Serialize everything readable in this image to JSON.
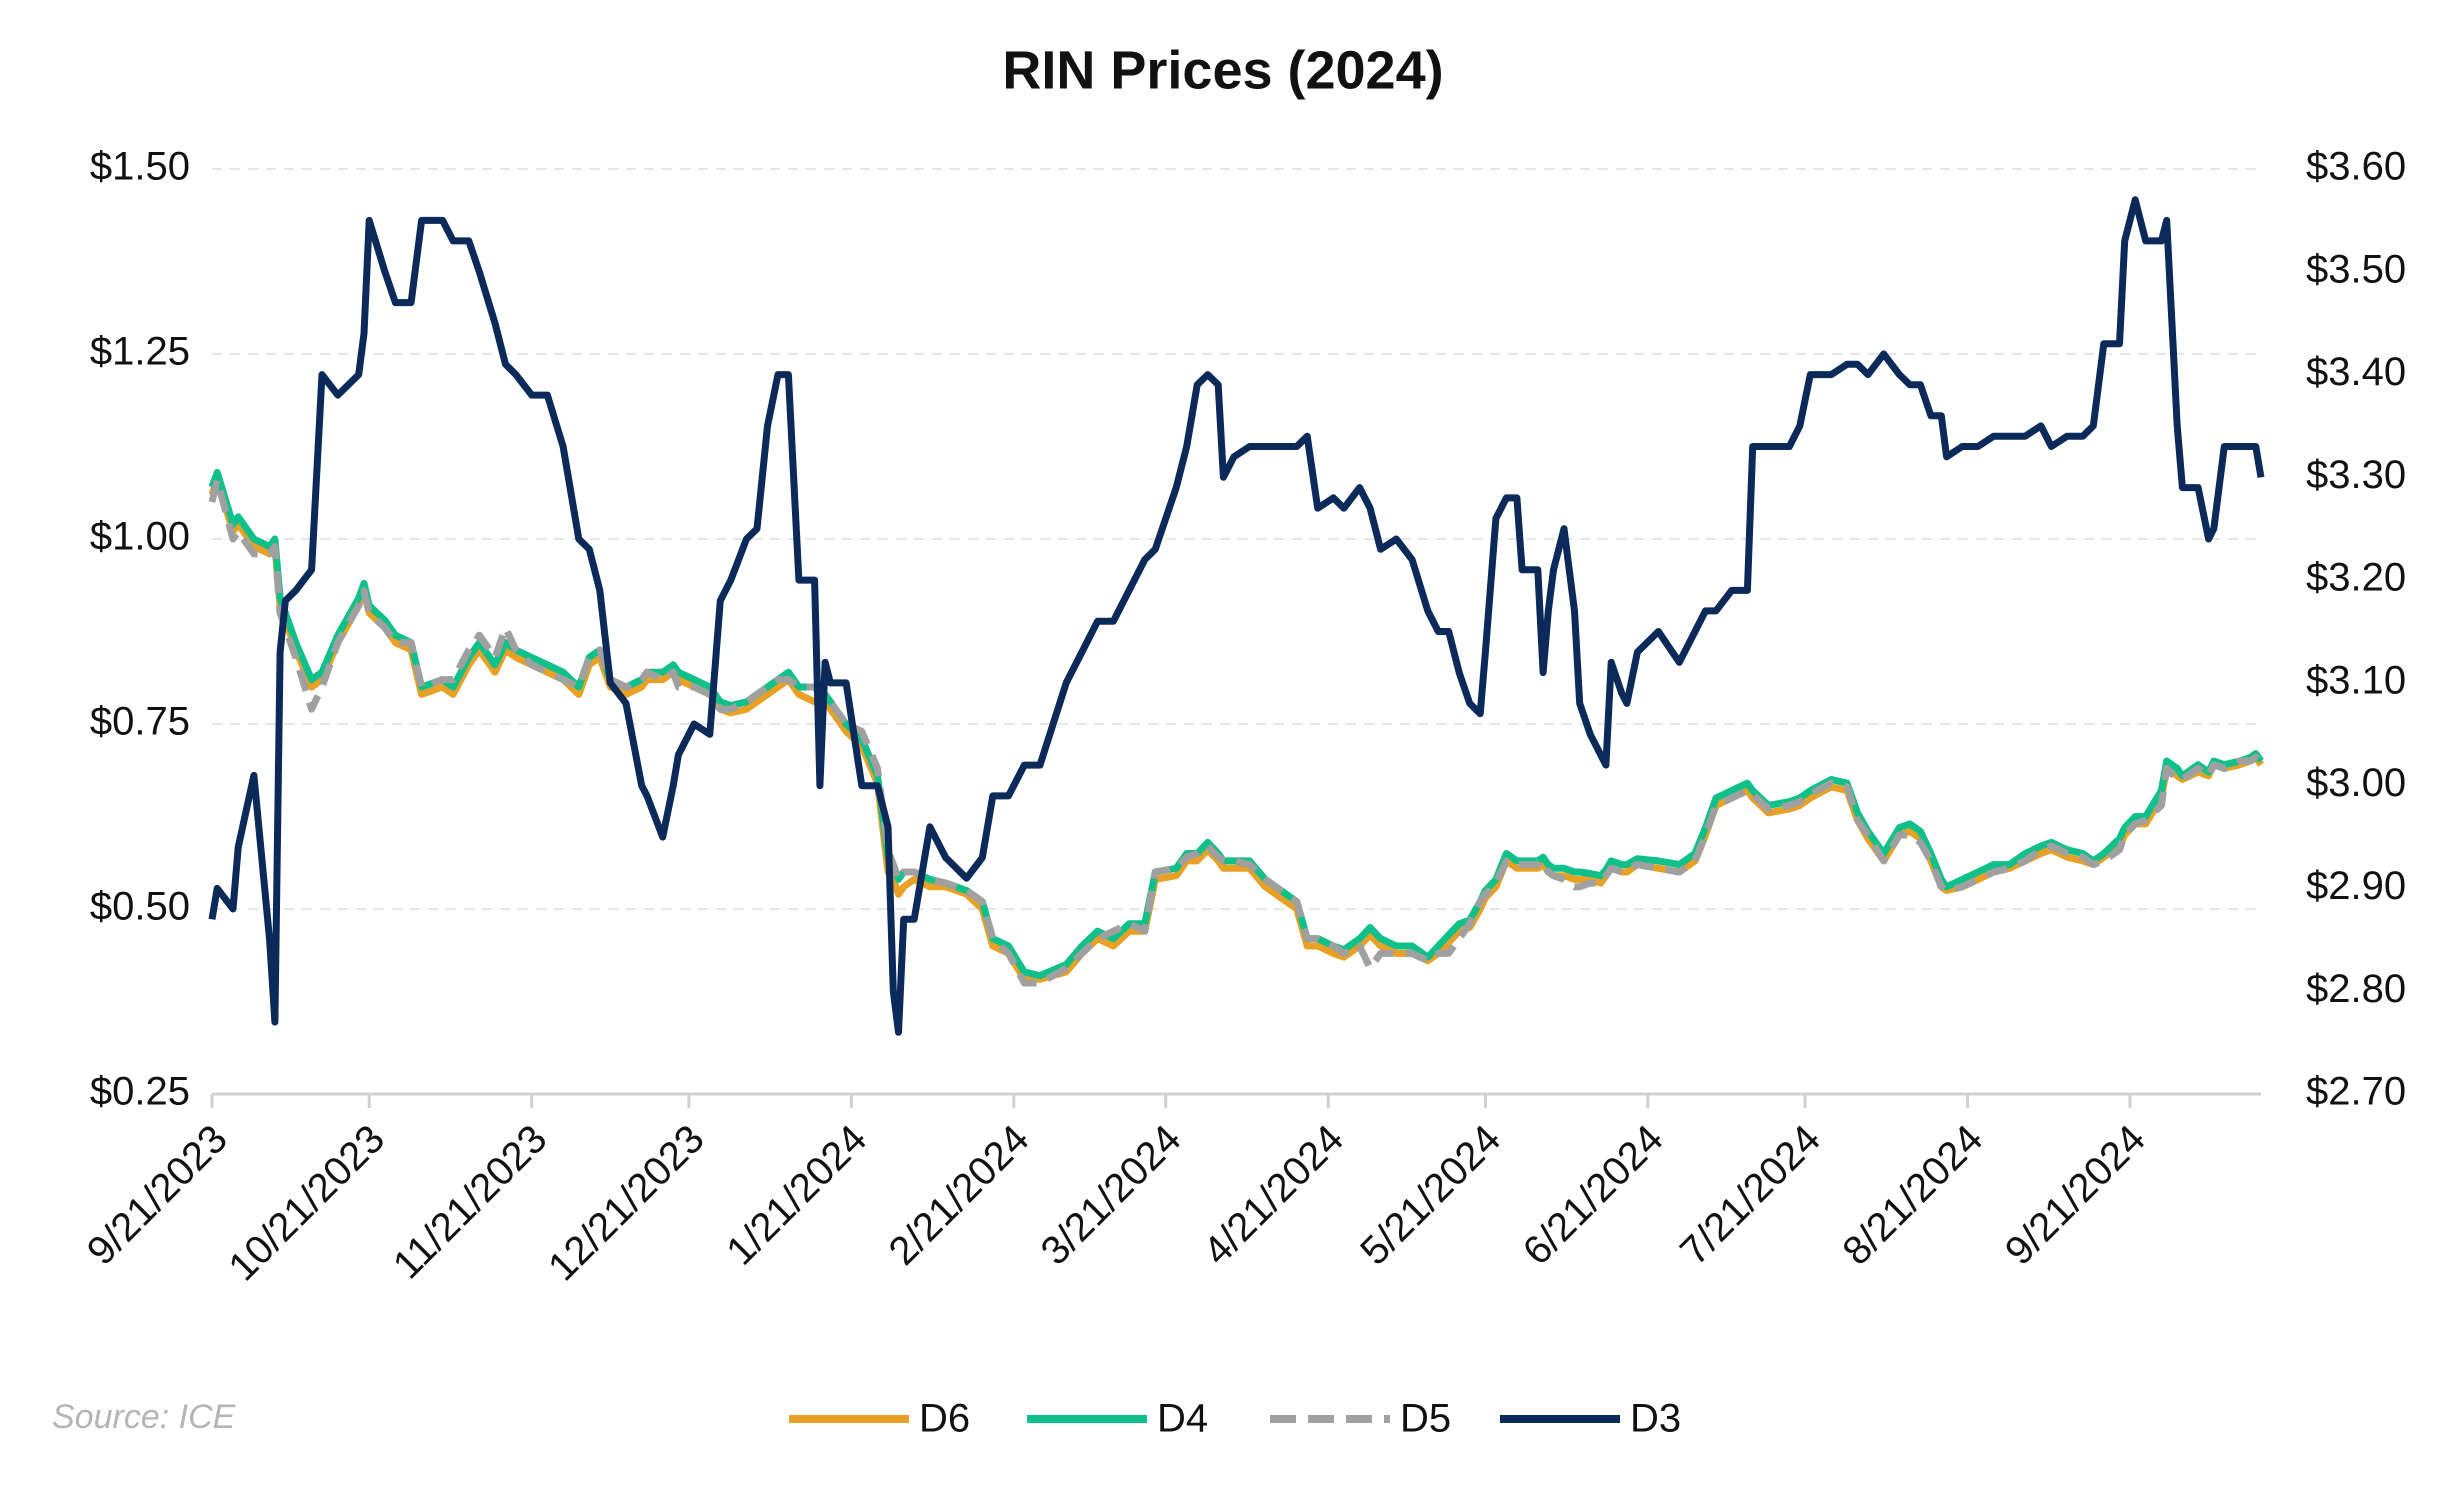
{
  "chart_data": {
    "type": "line",
    "title": "RIN Prices (2024)",
    "source": "Source: ICE",
    "legend": "bottom",
    "grid": true,
    "x": [
      "2023-09-21",
      "2023-09-22",
      "2023-09-25",
      "2023-09-26",
      "2023-09-29",
      "2023-10-02",
      "2023-10-03",
      "2023-10-04",
      "2023-10-05",
      "2023-10-07",
      "2023-10-10",
      "2023-10-12",
      "2023-10-15",
      "2023-10-19",
      "2023-10-20",
      "2023-10-21",
      "2023-10-24",
      "2023-10-26",
      "2023-10-29",
      "2023-10-31",
      "2023-11-04",
      "2023-11-06",
      "2023-11-09",
      "2023-11-11",
      "2023-11-14",
      "2023-11-16",
      "2023-11-18",
      "2023-11-21",
      "2023-11-24",
      "2023-11-27",
      "2023-11-30",
      "2023-12-02",
      "2023-12-04",
      "2023-12-06",
      "2023-12-09",
      "2023-12-12",
      "2023-12-13",
      "2023-12-16",
      "2023-12-18",
      "2023-12-19",
      "2023-12-22",
      "2023-12-25",
      "2023-12-27",
      "2023-12-29",
      "2024-01-01",
      "2024-01-03",
      "2024-01-05",
      "2024-01-07",
      "2024-01-09",
      "2024-01-11",
      "2024-01-14",
      "2024-01-15",
      "2024-01-16",
      "2024-01-17",
      "2024-01-20",
      "2024-01-23",
      "2024-01-26",
      "2024-01-28",
      "2024-01-29",
      "2024-01-30",
      "2024-01-31",
      "2024-02-02",
      "2024-02-05",
      "2024-02-08",
      "2024-02-12",
      "2024-02-15",
      "2024-02-17",
      "2024-02-20",
      "2024-02-23",
      "2024-02-26",
      "2024-03-02",
      "2024-03-05",
      "2024-03-08",
      "2024-03-11",
      "2024-03-14",
      "2024-03-17",
      "2024-03-19",
      "2024-03-23",
      "2024-03-25",
      "2024-03-27",
      "2024-03-29",
      "2024-03-31",
      "2024-04-01",
      "2024-04-03",
      "2024-04-06",
      "2024-04-09",
      "2024-04-12",
      "2024-04-15",
      "2024-04-17",
      "2024-04-19",
      "2024-04-22",
      "2024-04-24",
      "2024-04-27",
      "2024-04-29",
      "2024-05-01",
      "2024-05-04",
      "2024-05-07",
      "2024-05-10",
      "2024-05-12",
      "2024-05-14",
      "2024-05-16",
      "2024-05-18",
      "2024-05-20",
      "2024-05-21",
      "2024-05-23",
      "2024-05-25",
      "2024-05-27",
      "2024-05-28",
      "2024-05-31",
      "2024-06-01",
      "2024-06-02",
      "2024-06-03",
      "2024-06-05",
      "2024-06-07",
      "2024-06-08",
      "2024-06-10",
      "2024-06-12",
      "2024-06-13",
      "2024-06-14",
      "2024-06-16",
      "2024-06-17",
      "2024-06-19",
      "2024-06-23",
      "2024-06-27",
      "2024-06-30",
      "2024-07-02",
      "2024-07-04",
      "2024-07-07",
      "2024-07-10",
      "2024-07-11",
      "2024-07-14",
      "2024-07-18",
      "2024-07-20",
      "2024-07-22",
      "2024-07-26",
      "2024-07-29",
      "2024-07-31",
      "2024-08-02",
      "2024-08-05",
      "2024-08-08",
      "2024-08-10",
      "2024-08-12",
      "2024-08-14",
      "2024-08-16",
      "2024-08-17",
      "2024-08-20",
      "2024-08-23",
      "2024-08-26",
      "2024-08-29",
      "2024-09-01",
      "2024-09-04",
      "2024-09-06",
      "2024-09-09",
      "2024-09-12",
      "2024-09-14",
      "2024-09-16",
      "2024-09-19",
      "2024-09-20",
      "2024-09-22",
      "2024-09-24",
      "2024-09-27",
      "2024-09-28",
      "2024-09-30",
      "2024-10-01",
      "2024-10-04",
      "2024-10-06",
      "2024-10-07",
      "2024-10-09",
      "2024-10-12",
      "2024-10-14",
      "2024-10-15",
      "2024-10-16"
    ],
    "series": [
      {
        "name": "D6",
        "color": "#e8a025",
        "dash": false,
        "values": [
          1.06,
          1.08,
          1.01,
          1.02,
          0.99,
          0.98,
          0.99,
          0.91,
          0.89,
          0.85,
          0.8,
          0.81,
          0.86,
          0.91,
          0.93,
          0.9,
          0.88,
          0.86,
          0.85,
          0.79,
          0.8,
          0.79,
          0.83,
          0.85,
          0.82,
          0.85,
          0.84,
          0.83,
          0.82,
          0.81,
          0.79,
          0.83,
          0.84,
          0.8,
          0.79,
          0.8,
          0.81,
          0.81,
          0.82,
          0.81,
          0.8,
          0.79,
          0.77,
          0.765,
          0.77,
          0.78,
          0.79,
          0.8,
          0.81,
          0.79,
          0.78,
          0.78,
          0.78,
          0.77,
          0.74,
          0.72,
          0.67,
          0.55,
          0.54,
          0.52,
          0.53,
          0.54,
          0.53,
          0.53,
          0.52,
          0.5,
          0.45,
          0.44,
          0.405,
          0.405,
          0.415,
          0.44,
          0.46,
          0.45,
          0.47,
          0.47,
          0.54,
          0.545,
          0.565,
          0.565,
          0.58,
          0.565,
          0.555,
          0.555,
          0.555,
          0.53,
          0.515,
          0.5,
          0.45,
          0.45,
          0.44,
          0.435,
          0.45,
          0.465,
          0.45,
          0.44,
          0.44,
          0.43,
          0.44,
          0.455,
          0.47,
          0.475,
          0.5,
          0.515,
          0.53,
          0.565,
          0.555,
          0.555,
          0.555,
          0.56,
          0.55,
          0.545,
          0.545,
          0.54,
          0.54,
          0.54,
          0.535,
          0.545,
          0.555,
          0.55,
          0.55,
          0.56,
          0.555,
          0.55,
          0.565,
          0.6,
          0.64,
          0.65,
          0.66,
          0.65,
          0.63,
          0.635,
          0.64,
          0.65,
          0.665,
          0.66,
          0.62,
          0.595,
          0.565,
          0.6,
          0.605,
          0.595,
          0.565,
          0.53,
          0.525,
          0.53,
          0.54,
          0.55,
          0.555,
          0.565,
          0.575,
          0.58,
          0.57,
          0.565,
          0.56,
          0.57,
          0.585,
          0.6,
          0.615,
          0.615,
          0.65,
          0.69,
          0.68,
          0.675,
          0.685,
          0.68,
          0.695,
          0.69,
          0.695,
          0.7,
          0.705,
          0.695
        ]
      },
      {
        "name": "D4",
        "color": "#10c08a",
        "dash": false,
        "values": [
          1.07,
          1.09,
          1.02,
          1.03,
          1.0,
          0.99,
          1.0,
          0.92,
          0.9,
          0.86,
          0.81,
          0.82,
          0.87,
          0.92,
          0.94,
          0.91,
          0.89,
          0.87,
          0.86,
          0.8,
          0.81,
          0.8,
          0.84,
          0.86,
          0.83,
          0.86,
          0.85,
          0.84,
          0.83,
          0.82,
          0.8,
          0.84,
          0.85,
          0.81,
          0.8,
          0.81,
          0.82,
          0.82,
          0.83,
          0.82,
          0.81,
          0.8,
          0.78,
          0.775,
          0.78,
          0.79,
          0.8,
          0.81,
          0.82,
          0.8,
          0.8,
          0.79,
          0.79,
          0.78,
          0.75,
          0.73,
          0.68,
          0.57,
          0.56,
          0.54,
          0.55,
          0.55,
          0.54,
          0.535,
          0.525,
          0.51,
          0.46,
          0.45,
          0.415,
          0.41,
          0.425,
          0.45,
          0.47,
          0.46,
          0.48,
          0.48,
          0.55,
          0.555,
          0.575,
          0.575,
          0.59,
          0.575,
          0.565,
          0.565,
          0.565,
          0.54,
          0.525,
          0.51,
          0.46,
          0.46,
          0.45,
          0.445,
          0.46,
          0.475,
          0.46,
          0.45,
          0.45,
          0.435,
          0.45,
          0.465,
          0.48,
          0.485,
          0.51,
          0.525,
          0.54,
          0.575,
          0.565,
          0.565,
          0.565,
          0.57,
          0.56,
          0.555,
          0.555,
          0.55,
          0.55,
          0.548,
          0.545,
          0.553,
          0.565,
          0.56,
          0.56,
          0.568,
          0.565,
          0.56,
          0.575,
          0.61,
          0.65,
          0.66,
          0.67,
          0.66,
          0.64,
          0.645,
          0.65,
          0.66,
          0.675,
          0.67,
          0.63,
          0.605,
          0.575,
          0.61,
          0.615,
          0.605,
          0.575,
          0.54,
          0.53,
          0.54,
          0.55,
          0.56,
          0.56,
          0.575,
          0.585,
          0.59,
          0.58,
          0.575,
          0.565,
          0.575,
          0.595,
          0.61,
          0.625,
          0.625,
          0.66,
          0.7,
          0.69,
          0.68,
          0.695,
          0.685,
          0.7,
          0.695,
          0.7,
          0.705,
          0.71,
          0.7
        ]
      },
      {
        "name": "D5",
        "color": "#a0a0a0",
        "dash": true,
        "values": [
          1.05,
          1.08,
          1.0,
          1.01,
          0.98,
          0.98,
          0.99,
          0.9,
          0.88,
          0.84,
          0.77,
          0.8,
          0.86,
          0.91,
          0.93,
          0.9,
          0.88,
          0.86,
          0.86,
          0.8,
          0.81,
          0.81,
          0.85,
          0.87,
          0.84,
          0.88,
          0.85,
          0.83,
          0.82,
          0.81,
          0.8,
          0.84,
          0.85,
          0.81,
          0.8,
          0.81,
          0.82,
          0.81,
          0.82,
          0.8,
          0.8,
          0.79,
          0.77,
          0.77,
          0.78,
          0.79,
          0.8,
          0.81,
          0.81,
          0.8,
          0.8,
          0.79,
          0.79,
          0.78,
          0.75,
          0.74,
          0.69,
          0.58,
          0.56,
          0.54,
          0.55,
          0.55,
          0.54,
          0.535,
          0.525,
          0.51,
          0.46,
          0.44,
          0.4,
          0.4,
          0.42,
          0.44,
          0.46,
          0.47,
          0.48,
          0.47,
          0.55,
          0.555,
          0.57,
          0.575,
          0.585,
          0.57,
          0.565,
          0.565,
          0.56,
          0.54,
          0.525,
          0.51,
          0.46,
          0.46,
          0.45,
          0.44,
          0.45,
          0.42,
          0.44,
          0.44,
          0.44,
          0.43,
          0.44,
          0.44,
          0.46,
          0.48,
          0.51,
          0.52,
          0.535,
          0.565,
          0.56,
          0.56,
          0.56,
          0.565,
          0.55,
          0.545,
          0.54,
          0.53,
          0.53,
          0.535,
          0.535,
          0.545,
          0.555,
          0.55,
          0.555,
          0.56,
          0.555,
          0.55,
          0.565,
          0.6,
          0.64,
          0.65,
          0.66,
          0.655,
          0.635,
          0.64,
          0.645,
          0.655,
          0.67,
          0.665,
          0.62,
          0.6,
          0.565,
          0.6,
          0.6,
          0.59,
          0.565,
          0.53,
          0.525,
          0.53,
          0.54,
          0.55,
          0.555,
          0.565,
          0.58,
          0.585,
          0.575,
          0.57,
          0.56,
          0.565,
          0.58,
          0.6,
          0.615,
          0.62,
          0.64,
          0.69,
          0.675,
          0.675,
          0.69,
          0.68,
          0.695,
          0.69,
          0.7,
          0.7,
          0.705,
          0.695
        ]
      },
      {
        "name": "D3",
        "color": "#0b2a5a",
        "dash": false,
        "axis": "y2",
        "values": [
          2.87,
          2.9,
          2.88,
          2.94,
          3.01,
          2.85,
          2.77,
          3.13,
          3.18,
          3.19,
          3.21,
          3.4,
          3.38,
          3.4,
          3.44,
          3.55,
          3.5,
          3.47,
          3.47,
          3.55,
          3.55,
          3.53,
          3.53,
          3.5,
          3.45,
          3.41,
          3.4,
          3.38,
          3.38,
          3.33,
          3.24,
          3.23,
          3.19,
          3.1,
          3.08,
          3.0,
          2.99,
          2.95,
          3.0,
          3.03,
          3.06,
          3.05,
          3.18,
          3.2,
          3.24,
          3.25,
          3.35,
          3.4,
          3.4,
          3.2,
          3.2,
          3.0,
          3.12,
          3.1,
          3.1,
          3.0,
          3.0,
          2.96,
          2.8,
          2.76,
          2.87,
          2.87,
          2.96,
          2.93,
          2.91,
          2.93,
          2.99,
          2.99,
          3.02,
          3.02,
          3.1,
          3.13,
          3.16,
          3.16,
          3.19,
          3.22,
          3.23,
          3.29,
          3.33,
          3.39,
          3.4,
          3.39,
          3.3,
          3.32,
          3.33,
          3.33,
          3.33,
          3.33,
          3.34,
          3.27,
          3.28,
          3.27,
          3.29,
          3.27,
          3.23,
          3.24,
          3.22,
          3.17,
          3.15,
          3.15,
          3.11,
          3.08,
          3.07,
          3.13,
          3.26,
          3.28,
          3.28,
          3.21,
          3.21,
          3.11,
          3.17,
          3.21,
          3.25,
          3.17,
          3.08,
          3.05,
          3.03,
          3.02,
          3.12,
          3.09,
          3.08,
          3.13,
          3.15,
          3.12,
          3.15,
          3.17,
          3.17,
          3.19,
          3.19,
          3.33,
          3.33,
          3.33,
          3.35,
          3.4,
          3.4,
          3.41,
          3.41,
          3.4,
          3.42,
          3.4,
          3.39,
          3.39,
          3.36,
          3.36,
          3.32,
          3.33,
          3.33,
          3.34,
          3.34,
          3.34,
          3.35,
          3.33,
          3.34,
          3.34,
          3.35,
          3.43,
          3.43,
          3.53,
          3.57,
          3.53,
          3.53,
          3.55,
          3.35,
          3.29,
          3.29,
          3.24,
          3.25,
          3.33,
          3.33,
          3.33,
          3.33,
          3.3
        ]
      }
    ],
    "xlim": [
      "2023-09-21",
      "2024-10-16"
    ],
    "xticks": [
      {
        "value": "2023-09-21",
        "label": "9/21/2023"
      },
      {
        "value": "2023-10-21",
        "label": "10/21/2023"
      },
      {
        "value": "2023-11-21",
        "label": "11/21/2023"
      },
      {
        "value": "2023-12-21",
        "label": "12/21/2023"
      },
      {
        "value": "2024-01-21",
        "label": "1/21/2024"
      },
      {
        "value": "2024-02-21",
        "label": "2/21/2024"
      },
      {
        "value": "2024-03-21",
        "label": "3/21/2024"
      },
      {
        "value": "2024-04-21",
        "label": "4/21/2024"
      },
      {
        "value": "2024-05-21",
        "label": "5/21/2024"
      },
      {
        "value": "2024-06-21",
        "label": "6/21/2024"
      },
      {
        "value": "2024-07-21",
        "label": "7/21/2024"
      },
      {
        "value": "2024-08-21",
        "label": "8/21/2024"
      },
      {
        "value": "2024-09-21",
        "label": "9/21/2024"
      }
    ],
    "ylim": [
      0.25,
      1.5
    ],
    "yticks": [
      {
        "value": 0.25,
        "label": "$0.25"
      },
      {
        "value": 0.5,
        "label": "$0.50"
      },
      {
        "value": 0.75,
        "label": "$0.75"
      },
      {
        "value": 1.0,
        "label": "$1.00"
      },
      {
        "value": 1.25,
        "label": "$1.25"
      },
      {
        "value": 1.5,
        "label": "$1.50"
      }
    ],
    "y2lim": [
      2.7,
      3.6
    ],
    "y2ticks": [
      {
        "value": 2.7,
        "label": "$2.70"
      },
      {
        "value": 2.8,
        "label": "$2.80"
      },
      {
        "value": 2.9,
        "label": "$2.90"
      },
      {
        "value": 3.0,
        "label": "$3.00"
      },
      {
        "value": 3.1,
        "label": "$3.10"
      },
      {
        "value": 3.2,
        "label": "$3.20"
      },
      {
        "value": 3.3,
        "label": "$3.30"
      },
      {
        "value": 3.4,
        "label": "$3.40"
      },
      {
        "value": 3.5,
        "label": "$3.50"
      },
      {
        "value": 3.6,
        "label": "$3.60"
      }
    ]
  }
}
